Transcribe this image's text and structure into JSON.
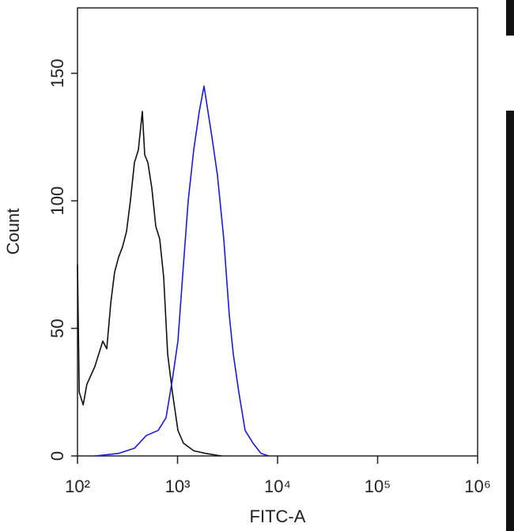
{
  "chart_data": {
    "type": "line",
    "xlabel": "FITC-A",
    "ylabel": "Count",
    "xscale": "log",
    "xlim": [
      100,
      1000000
    ],
    "ylim": [
      0,
      175
    ],
    "xticks": [
      {
        "value": 100,
        "label": "10²"
      },
      {
        "value": 1000,
        "label": "10³"
      },
      {
        "value": 10000,
        "label": "10⁴"
      },
      {
        "value": 100000,
        "label": "10⁵"
      },
      {
        "value": 1000000,
        "label": "10⁶"
      }
    ],
    "yticks": [
      0,
      50,
      100,
      150
    ],
    "series": [
      {
        "color": "#111111",
        "x": [
          100,
          104,
          114,
          124,
          149,
          179,
          196,
          215,
          235,
          258,
          282,
          309,
          338,
          371,
          406,
          445,
          470,
          505,
          553,
          606,
          664,
          727,
          796,
          889,
          1009,
          1146,
          1452,
          1909,
          2746
        ],
        "values": [
          75,
          25,
          20,
          28,
          35,
          45,
          42,
          60,
          72,
          78,
          82,
          88,
          100,
          115,
          120,
          135,
          118,
          115,
          105,
          90,
          85,
          70,
          40,
          25,
          10,
          5,
          2,
          1,
          0
        ]
      },
      {
        "color": "#1a1adc",
        "x": [
          149,
          258,
          371,
          487,
          640,
          768,
          889,
          1009,
          1146,
          1279,
          1452,
          1650,
          1840,
          2015,
          2208,
          2507,
          2900,
          3295,
          3609,
          4100,
          4743,
          5686,
          6823,
          8185
        ],
        "values": [
          0,
          1,
          3,
          8,
          10,
          15,
          30,
          45,
          75,
          100,
          120,
          135,
          145,
          135,
          125,
          110,
          85,
          55,
          40,
          25,
          10,
          5,
          1,
          0
        ]
      }
    ]
  }
}
